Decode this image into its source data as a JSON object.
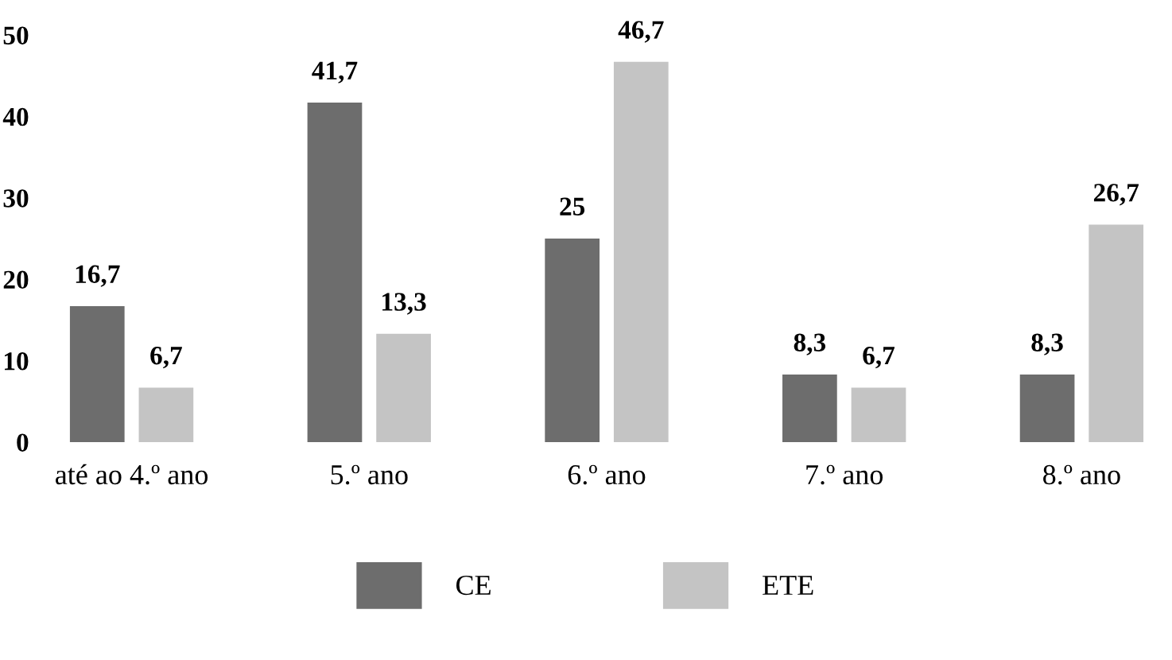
{
  "chart_data": {
    "type": "bar",
    "categories": [
      "até ao 4.º ano",
      "5.º ano",
      "6.º ano",
      "7.º ano",
      "8.º ano"
    ],
    "series": [
      {
        "name": "CE",
        "color": "#6d6d6d",
        "values": [
          16.7,
          41.7,
          25,
          8.3,
          8.3
        ],
        "value_labels": [
          "16,7",
          "41,7",
          "25",
          "8,3",
          "8,3"
        ]
      },
      {
        "name": "ETE",
        "color": "#c4c4c4",
        "values": [
          6.7,
          13.3,
          46.7,
          6.7,
          26.7
        ],
        "value_labels": [
          "6,7",
          "13,3",
          "46,7",
          "6,7",
          "26,7"
        ]
      }
    ],
    "ylim": [
      0,
      50
    ],
    "yticks": [
      0,
      10,
      20,
      30,
      40,
      50
    ],
    "grid": false,
    "legend": "bottom"
  }
}
